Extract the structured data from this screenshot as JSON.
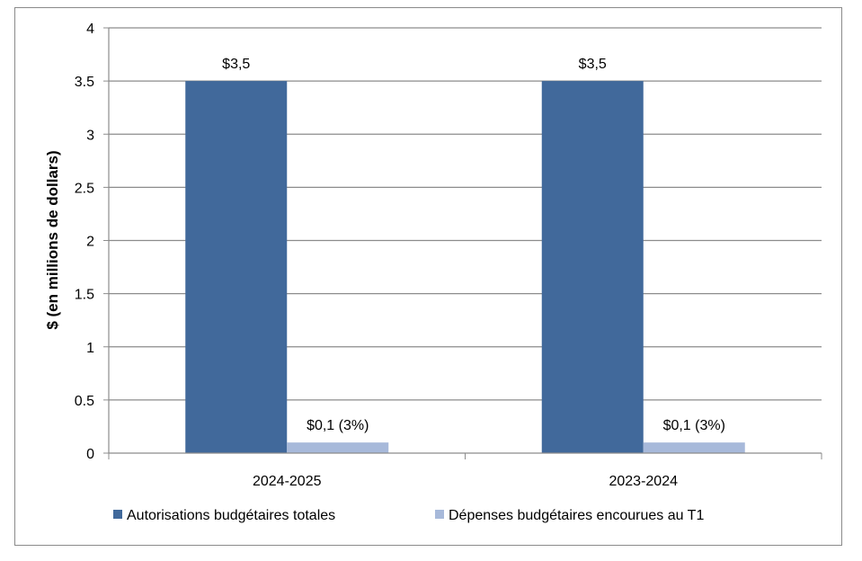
{
  "chart_data": {
    "type": "bar",
    "categories": [
      "2024-2025",
      "2023-2024"
    ],
    "series": [
      {
        "name": "Autorisations budgétaires totales",
        "values": [
          3.5,
          3.5
        ],
        "labels": [
          "$3,5",
          "$3,5"
        ],
        "color": "#41699B"
      },
      {
        "name": "Dépenses budgétaires encourues au T1",
        "values": [
          0.1,
          0.1
        ],
        "labels": [
          "$0,1 (3%)",
          "$0,1 (3%)"
        ],
        "color": "#A7B9DA"
      }
    ],
    "ylabel": "$ (en millions de dollars)",
    "xlabel": "",
    "ylim": [
      0,
      4
    ],
    "yticks": [
      "0",
      "0.5",
      "1",
      "1.5",
      "2",
      "2.5",
      "3",
      "3.5",
      "4"
    ],
    "grid": true,
    "legend": "bottom"
  }
}
